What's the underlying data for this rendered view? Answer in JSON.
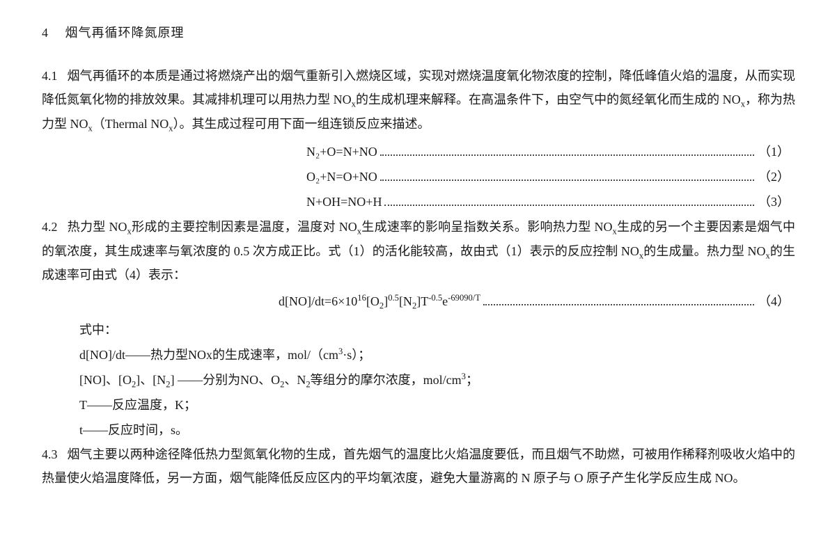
{
  "heading": {
    "number": "4",
    "title": "烟气再循环降氮原理"
  },
  "p41": {
    "number": "4.1",
    "text_before_sub1": "烟气再循环的本质是通过将燃烧产出的烟气重新引入燃烧区域，实现对燃烧温度氧化物浓度的控制，降低峰值火焰的温度，从而实现降低氮氧化物的排放效果。其减排机理可以用热力型 NO",
    "sub1": "x",
    "text_mid1": "的生成机理来解释。在高温条件下，由空气中的氮经氧化而生成的 NO",
    "sub2": "x",
    "text_mid2": "，称为热力型 NO",
    "sub3": "x",
    "text_mid3": "（Thermal NO",
    "sub4": "x",
    "text_end": "）。其生成过程可用下面一组连锁反应来描述。"
  },
  "eq1": {
    "body": "N₂+O=N+NO",
    "num": "（1）"
  },
  "eq2": {
    "body": "O₂+N=O+NO",
    "num": "（2）"
  },
  "eq3": {
    "body": "N+OH=NO+H",
    "num": "（3）"
  },
  "p42": {
    "number": "4.2",
    "t1": "热力型 NO",
    "s1": "x",
    "t2": "形成的主要控制因素是温度，温度对 NO",
    "s2": "x",
    "t3": "生成速率的影响呈指数关系。影响热力型 NO",
    "s3": "x",
    "t4": "生成的另一个主要因素是烟气中的氧浓度，其生成速率与氧浓度的 0.5 次方成正比。式（1）的活化能较高，故由式（1）表示的反应控制 NO",
    "s4": "x",
    "t5": "的生成量。热力型 NO",
    "s5": "x",
    "t6": "的生成速率可由式（4）表示："
  },
  "eq4": {
    "pre": "d[NO]/dt=6×10",
    "sup1": "16",
    "mid1": "[O",
    "sub1": "2",
    "mid2": "]",
    "sup2": "0.5",
    "mid3": "[N",
    "sub2": "2",
    "mid4": "]T",
    "sup3": "-0.5",
    "mid5": "e",
    "sup4": "-69090/T",
    "num": "（4）"
  },
  "where": {
    "label": "式中：",
    "l1a": "d[NO]/dt——热力型NOx的生成速率，mol/（cm",
    "l1sup": "3",
    "l1b": "·s）；",
    "l2a": "[NO]、[O",
    "l2s1": "2",
    "l2b": "]、[N",
    "l2s2": "2",
    "l2c": "] ——分别为NO、O",
    "l2s3": "2",
    "l2d": "、N",
    "l2s4": "2",
    "l2e": "等组分的摩尔浓度，mol/cm",
    "l2sup": "3",
    "l2f": "；",
    "l3": "T——反应温度，K；",
    "l4": "t——反应时间，s。"
  },
  "p43": {
    "number": "4.3",
    "text": "烟气主要以两种途径降低热力型氮氧化物的生成，首先烟气的温度比火焰温度要低，而且烟气不助燃，可被用作稀释剂吸收火焰中的热量使火焰温度降低，另一方面，烟气能降低反应区内的平均氧浓度，避免大量游离的 N 原子与 O 原子产生化学反应生成 NO。"
  }
}
